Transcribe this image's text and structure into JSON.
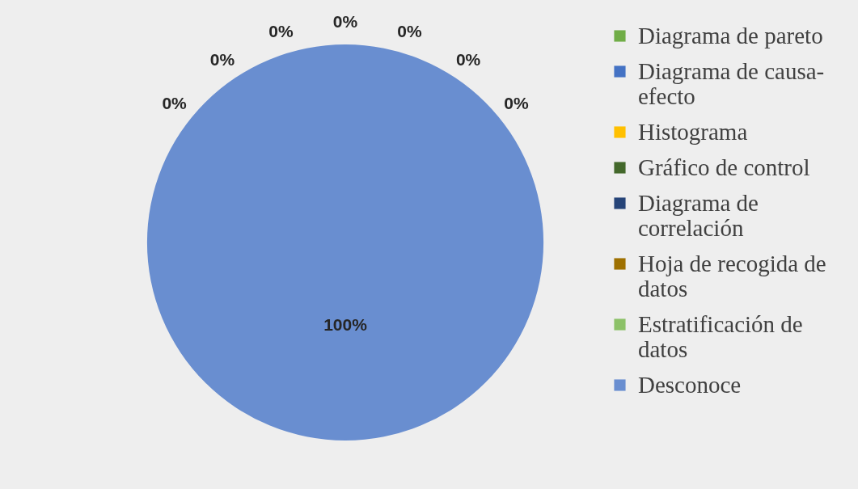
{
  "chart_data": {
    "type": "pie",
    "categories": [
      "Diagrama de pareto",
      "Diagrama de causa-efecto",
      "Histograma",
      "Gráfico de control",
      "Diagrama de correlación",
      "Hoja de recogida de datos",
      "Estratificación de datos",
      "Desconoce"
    ],
    "values": [
      0,
      0,
      0,
      0,
      0,
      0,
      0,
      100
    ],
    "colors": [
      "#70ad47",
      "#4472c4",
      "#ffc000",
      "#43682b",
      "#264478",
      "#9e7000",
      "#8cc168",
      "#698ed0"
    ],
    "value_labels": [
      "0%",
      "0%",
      "0%",
      "0%",
      "0%",
      "0%",
      "0%",
      "100%"
    ],
    "legend": "right"
  }
}
